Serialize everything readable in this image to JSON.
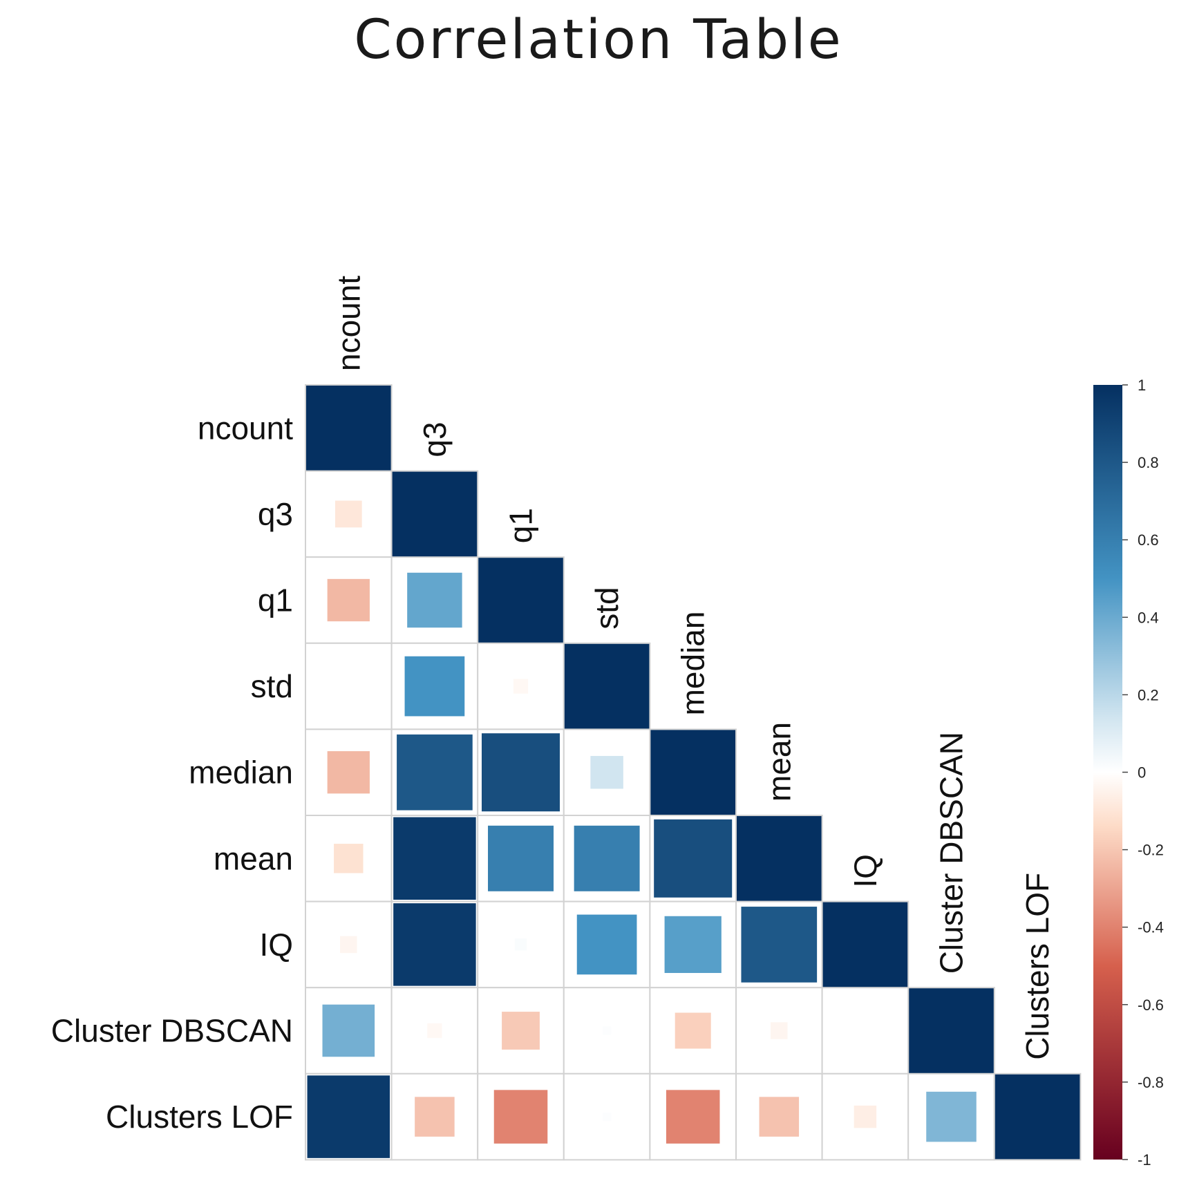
{
  "chart_data": {
    "type": "heatmap",
    "subtype": "correlation-lower-triangle",
    "title": "Correlation Table",
    "variables": [
      "ncount",
      "q3",
      "q1",
      "std",
      "median",
      "mean",
      "IQ",
      "Cluster DBSCAN",
      "Clusters LOF"
    ],
    "matrix": [
      [
        1.0,
        -0.1,
        -0.25,
        0.0,
        -0.25,
        -0.12,
        -0.04,
        0.38,
        0.95
      ],
      [
        -0.1,
        1.0,
        0.42,
        0.5,
        0.8,
        0.95,
        0.95,
        -0.03,
        -0.22
      ],
      [
        -0.25,
        0.42,
        1.0,
        -0.03,
        0.85,
        0.6,
        0.02,
        -0.2,
        -0.4
      ],
      [
        0.0,
        0.5,
        -0.03,
        1.0,
        0.15,
        0.6,
        0.5,
        0.01,
        0.01
      ],
      [
        -0.25,
        0.8,
        0.85,
        0.15,
        1.0,
        0.85,
        0.45,
        -0.18,
        -0.4
      ],
      [
        -0.12,
        0.95,
        0.6,
        0.6,
        0.85,
        1.0,
        0.8,
        -0.04,
        -0.22
      ],
      [
        -0.04,
        0.95,
        0.02,
        0.5,
        0.45,
        0.8,
        1.0,
        0.0,
        -0.07
      ],
      [
        0.38,
        -0.03,
        -0.2,
        0.01,
        -0.18,
        -0.04,
        0.0,
        1.0,
        0.35
      ],
      [
        0.95,
        -0.22,
        -0.4,
        0.01,
        -0.4,
        -0.22,
        -0.07,
        0.35,
        1.0
      ]
    ],
    "colorbar": {
      "range": [
        -1,
        1
      ],
      "ticks": [
        "1",
        "0.8",
        "0.6",
        "0.4",
        "0.2",
        "0",
        "-0.2",
        "-0.4",
        "-0.6",
        "-0.8",
        "-1"
      ],
      "colors": {
        "neg_strong": "#67001f",
        "neg_mid": "#d6604d",
        "neg_light": "#fddbc7",
        "zero": "#ffffff",
        "pos_light": "#d1e5f0",
        "pos_mid": "#4393c3",
        "pos_strong": "#053061"
      }
    }
  }
}
